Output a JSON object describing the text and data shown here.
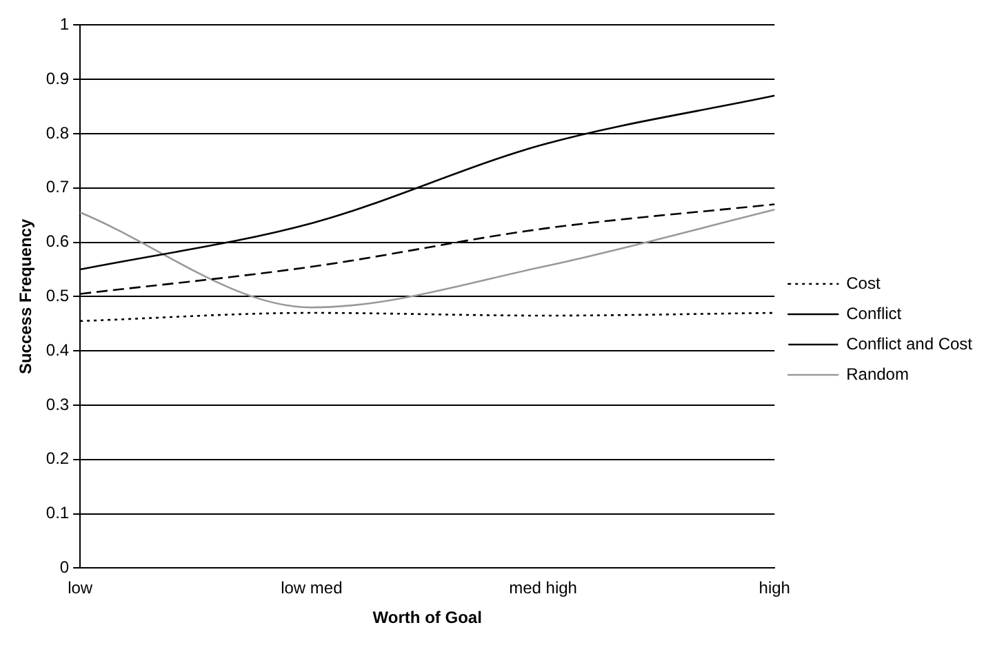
{
  "chart_data": {
    "type": "line",
    "xlabel": "Worth of Goal",
    "ylabel": "Success Frequency",
    "categories": [
      "low",
      "low med",
      "med high",
      "high"
    ],
    "series": [
      {
        "name": "Cost",
        "color": "#000000",
        "line_style": "dotted",
        "values": [
          0.455,
          0.47,
          0.465,
          0.47
        ]
      },
      {
        "name": "Conflict",
        "color": "#000000",
        "line_style": "solid",
        "values": [
          0.55,
          0.635,
          0.78,
          0.87
        ]
      },
      {
        "name": "Conflict and Cost",
        "color": "#000000",
        "line_style": "dashed",
        "values": [
          0.505,
          0.555,
          0.625,
          0.67
        ]
      },
      {
        "name": "Random",
        "color": "#999999",
        "line_style": "solid",
        "values": [
          0.655,
          0.48,
          0.555,
          0.66
        ]
      }
    ],
    "ylim": [
      0,
      1
    ],
    "yticks": [
      0,
      0.1,
      0.2,
      0.3,
      0.4,
      0.5,
      0.6,
      0.7,
      0.8,
      0.9,
      1
    ],
    "grid": "y",
    "legend": "right",
    "marker": "none"
  }
}
